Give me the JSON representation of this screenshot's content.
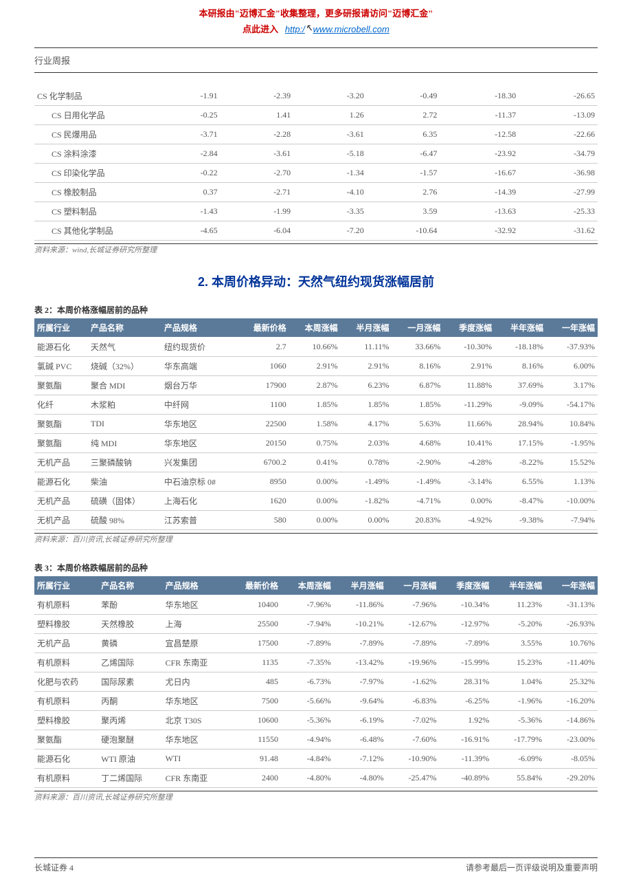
{
  "banner": {
    "line1_a": "本研报由\"迈博汇金\"收集整理，更多研报请访问\"迈博汇金\"",
    "line2_prefix": "点此进入",
    "url": "http://www.microbell.com"
  },
  "header": {
    "title": "行业周报"
  },
  "table1": {
    "rows": [
      {
        "name": "CS 化学制品",
        "indent": false,
        "c1": "-1.91",
        "c2": "-2.39",
        "c3": "-3.20",
        "c4": "-0.49",
        "c5": "-18.30",
        "c6": "-26.65"
      },
      {
        "name": "CS 日用化学品",
        "indent": true,
        "c1": "-0.25",
        "c2": "1.41",
        "c3": "1.26",
        "c4": "2.72",
        "c5": "-11.37",
        "c6": "-13.09"
      },
      {
        "name": "CS 民爆用品",
        "indent": true,
        "c1": "-3.71",
        "c2": "-2.28",
        "c3": "-3.61",
        "c4": "6.35",
        "c5": "-12.58",
        "c6": "-22.66"
      },
      {
        "name": "CS 涂料涂漆",
        "indent": true,
        "c1": "-2.84",
        "c2": "-3.61",
        "c3": "-5.18",
        "c4": "-6.47",
        "c5": "-23.92",
        "c6": "-34.79"
      },
      {
        "name": "CS 印染化学品",
        "indent": true,
        "c1": "-0.22",
        "c2": "-2.70",
        "c3": "-1.34",
        "c4": "-1.57",
        "c5": "-16.67",
        "c6": "-36.98"
      },
      {
        "name": "CS 橡胶制品",
        "indent": true,
        "c1": "0.37",
        "c2": "-2.71",
        "c3": "-4.10",
        "c4": "2.76",
        "c5": "-14.39",
        "c6": "-27.99"
      },
      {
        "name": "CS 塑料制品",
        "indent": true,
        "c1": "-1.43",
        "c2": "-1.99",
        "c3": "-3.35",
        "c4": "3.59",
        "c5": "-13.63",
        "c6": "-25.33"
      },
      {
        "name": "CS 其他化学制品",
        "indent": true,
        "c1": "-4.65",
        "c2": "-6.04",
        "c3": "-7.20",
        "c4": "-10.64",
        "c5": "-32.92",
        "c6": "-31.62"
      }
    ],
    "source": "资料来源：wind,长城证券研究所整理"
  },
  "section_heading": "2. 本周价格异动：天然气纽约现货涨幅居前",
  "table2": {
    "caption": "表 2：本周价格涨幅居前的品种",
    "columns": [
      "所属行业",
      "产品名称",
      "产品规格",
      "最新价格",
      "本周涨幅",
      "半月涨幅",
      "一月涨幅",
      "季度涨幅",
      "半年涨幅",
      "一年涨幅"
    ],
    "rows": [
      [
        "能源石化",
        "天然气",
        "纽约现货价",
        "2.7",
        "10.66%",
        "11.11%",
        "33.66%",
        "-10.30%",
        "-18.18%",
        "-37.93%"
      ],
      [
        "氯碱 PVC",
        "烧碱（32%）",
        "华东高端",
        "1060",
        "2.91%",
        "2.91%",
        "8.16%",
        "2.91%",
        "8.16%",
        "6.00%"
      ],
      [
        "聚氨酯",
        "聚合 MDI",
        "烟台万华",
        "17900",
        "2.87%",
        "6.23%",
        "6.87%",
        "11.88%",
        "37.69%",
        "3.17%"
      ],
      [
        "化纤",
        "木浆粕",
        "中纤网",
        "1100",
        "1.85%",
        "1.85%",
        "1.85%",
        "-11.29%",
        "-9.09%",
        "-54.17%"
      ],
      [
        "聚氨酯",
        "TDI",
        "华东地区",
        "22500",
        "1.58%",
        "4.17%",
        "5.63%",
        "11.66%",
        "28.94%",
        "10.84%"
      ],
      [
        "聚氨酯",
        "纯 MDI",
        "华东地区",
        "20150",
        "0.75%",
        "2.03%",
        "4.68%",
        "10.41%",
        "17.15%",
        "-1.95%"
      ],
      [
        "无机产品",
        "三聚磷酸钠",
        "兴发集团",
        "6700.2",
        "0.41%",
        "0.78%",
        "-2.90%",
        "-4.28%",
        "-8.22%",
        "15.52%"
      ],
      [
        "能源石化",
        "柴油",
        "中石油京标 0#",
        "8950",
        "0.00%",
        "-1.49%",
        "-1.49%",
        "-3.14%",
        "6.55%",
        "1.13%"
      ],
      [
        "无机产品",
        "硫磺（固体）",
        "上海石化",
        "1620",
        "0.00%",
        "-1.82%",
        "-4.71%",
        "0.00%",
        "-8.47%",
        "-10.00%"
      ],
      [
        "无机产品",
        "硫酸 98%",
        "江苏索普",
        "580",
        "0.00%",
        "0.00%",
        "20.83%",
        "-4.92%",
        "-9.38%",
        "-7.94%"
      ]
    ],
    "source": "资料来源：百川资讯,长城证券研究所整理"
  },
  "table3": {
    "caption": "表 3：本周价格跌幅居前的品种",
    "columns": [
      "所属行业",
      "产品名称",
      "产品规格",
      "最新价格",
      "本周涨幅",
      "半月涨幅",
      "一月涨幅",
      "季度涨幅",
      "半年涨幅",
      "一年涨幅"
    ],
    "rows": [
      [
        "有机原料",
        "苯酚",
        "华东地区",
        "10400",
        "-7.96%",
        "-11.86%",
        "-7.96%",
        "-10.34%",
        "11.23%",
        "-31.13%"
      ],
      [
        "塑料橡胶",
        "天然橡胶",
        "上海",
        "25500",
        "-7.94%",
        "-10.21%",
        "-12.67%",
        "-12.97%",
        "-5.20%",
        "-26.93%"
      ],
      [
        "无机产品",
        "黄磷",
        "宜昌楚原",
        "17500",
        "-7.89%",
        "-7.89%",
        "-7.89%",
        "-7.89%",
        "3.55%",
        "10.76%"
      ],
      [
        "有机原料",
        "乙烯国际",
        "CFR 东南亚",
        "1135",
        "-7.35%",
        "-13.42%",
        "-19.96%",
        "-15.99%",
        "15.23%",
        "-11.40%"
      ],
      [
        "化肥与农药",
        "国际尿素",
        "尤日内",
        "485",
        "-6.73%",
        "-7.97%",
        "-1.62%",
        "28.31%",
        "1.04%",
        "25.32%"
      ],
      [
        "有机原料",
        "丙酮",
        "华东地区",
        "7500",
        "-5.66%",
        "-9.64%",
        "-6.83%",
        "-6.25%",
        "-1.96%",
        "-16.20%"
      ],
      [
        "塑料橡胶",
        "聚丙烯",
        "北京 T30S",
        "10600",
        "-5.36%",
        "-6.19%",
        "-7.02%",
        "1.92%",
        "-5.36%",
        "-14.86%"
      ],
      [
        "聚氨酯",
        "硬泡聚醚",
        "华东地区",
        "11550",
        "-4.94%",
        "-6.48%",
        "-7.60%",
        "-16.91%",
        "-17.79%",
        "-23.00%"
      ],
      [
        "能源石化",
        "WTI 原油",
        "WTI",
        "91.48",
        "-4.84%",
        "-7.12%",
        "-10.90%",
        "-11.39%",
        "-6.09%",
        "-8.05%"
      ],
      [
        "有机原料",
        "丁二烯国际",
        "CFR 东南亚",
        "2400",
        "-4.80%",
        "-4.80%",
        "-25.47%",
        "-40.89%",
        "55.84%",
        "-29.20%"
      ]
    ],
    "source": "资料来源：百川资讯,长城证券研究所整理"
  },
  "footer": {
    "left": "长城证券 4",
    "right": "请参考最后一页评级说明及重要声明"
  }
}
